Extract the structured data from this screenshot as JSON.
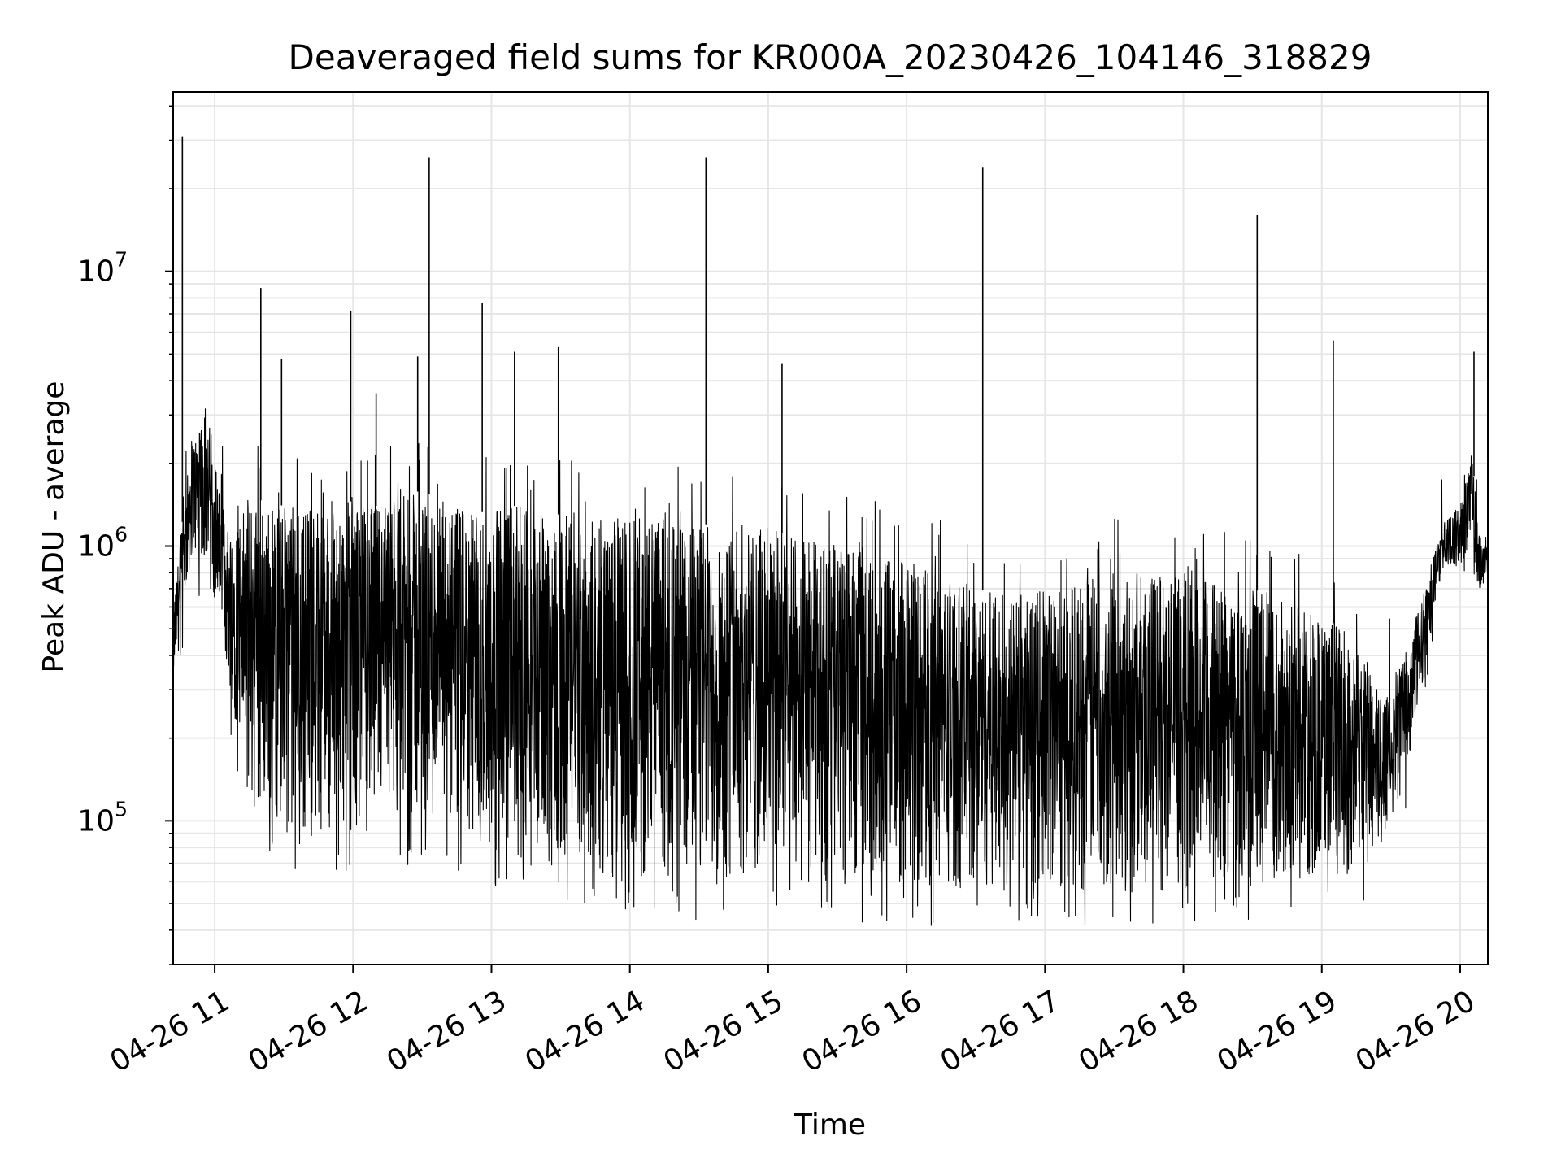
{
  "chart_data": {
    "type": "line",
    "title": "Deaveraged field sums for KR000A_20230426_104146_318829",
    "xlabel": "Time",
    "ylabel": "Peak ADU - average",
    "yscale": "log",
    "grid": true,
    "x_range": [
      "2023-04-26 10:42",
      "2023-04-26 20:12"
    ],
    "ylim": [
      30000,
      45000000
    ],
    "x_ticks": [
      {
        "t": "2023-04-26 11:00",
        "label": "04-26 11"
      },
      {
        "t": "2023-04-26 12:00",
        "label": "04-26 12"
      },
      {
        "t": "2023-04-26 13:00",
        "label": "04-26 13"
      },
      {
        "t": "2023-04-26 14:00",
        "label": "04-26 14"
      },
      {
        "t": "2023-04-26 15:00",
        "label": "04-26 15"
      },
      {
        "t": "2023-04-26 16:00",
        "label": "04-26 16"
      },
      {
        "t": "2023-04-26 17:00",
        "label": "04-26 17"
      },
      {
        "t": "2023-04-26 18:00",
        "label": "04-26 18"
      },
      {
        "t": "2023-04-26 19:00",
        "label": "04-26 19"
      },
      {
        "t": "2023-04-26 20:00",
        "label": "04-26 20"
      }
    ],
    "y_ticks": [
      {
        "value": 100000,
        "base": "10",
        "exp": "5"
      },
      {
        "value": 1000000,
        "base": "10",
        "exp": "6"
      },
      {
        "value": 10000000,
        "base": "10",
        "exp": "7"
      }
    ],
    "series": [
      {
        "color": "#000000",
        "spikes": [
          {
            "t": "2023-04-26 10:46",
            "y": 31000000
          },
          {
            "t": "2023-04-26 11:20",
            "y": 8700000
          },
          {
            "t": "2023-04-26 11:29",
            "y": 4800000
          },
          {
            "t": "2023-04-26 11:59",
            "y": 7200000
          },
          {
            "t": "2023-04-26 12:10",
            "y": 3600000
          },
          {
            "t": "2023-04-26 12:28",
            "y": 4900000
          },
          {
            "t": "2023-04-26 12:33",
            "y": 26000000
          },
          {
            "t": "2023-04-26 12:56",
            "y": 7700000
          },
          {
            "t": "2023-04-26 13:10",
            "y": 5100000
          },
          {
            "t": "2023-04-26 13:29",
            "y": 5300000
          },
          {
            "t": "2023-04-26 14:33",
            "y": 26000000
          },
          {
            "t": "2023-04-26 15:06",
            "y": 4600000
          },
          {
            "t": "2023-04-26 16:33",
            "y": 24000000
          },
          {
            "t": "2023-04-26 18:32",
            "y": 16000000
          },
          {
            "t": "2023-04-26 19:05",
            "y": 5600000
          },
          {
            "t": "2023-04-26 20:06",
            "y": 5100000
          }
        ],
        "envelope": [
          {
            "t": "2023-04-26 10:42",
            "y_low": 300000,
            "y_high": 600000
          },
          {
            "t": "2023-04-26 10:50",
            "y_low": 900000,
            "y_high": 2500000
          },
          {
            "t": "2023-04-26 10:58",
            "y_low": 800000,
            "y_high": 2800000
          },
          {
            "t": "2023-04-26 11:05",
            "y_low": 350000,
            "y_high": 1200000
          },
          {
            "t": "2023-04-26 11:15",
            "y_low": 110000,
            "y_high": 1500000
          },
          {
            "t": "2023-04-26 11:30",
            "y_low": 90000,
            "y_high": 1400000
          },
          {
            "t": "2023-04-26 11:50",
            "y_low": 85000,
            "y_high": 1500000
          },
          {
            "t": "2023-04-26 12:10",
            "y_low": 90000,
            "y_high": 1400000
          },
          {
            "t": "2023-04-26 12:30",
            "y_low": 90000,
            "y_high": 1600000
          },
          {
            "t": "2023-04-26 12:50",
            "y_low": 80000,
            "y_high": 1300000
          },
          {
            "t": "2023-04-26 13:10",
            "y_low": 70000,
            "y_high": 1400000
          },
          {
            "t": "2023-04-26 13:30",
            "y_low": 65000,
            "y_high": 1300000
          },
          {
            "t": "2023-04-26 13:50",
            "y_low": 60000,
            "y_high": 1250000
          },
          {
            "t": "2023-04-26 14:10",
            "y_low": 60000,
            "y_high": 1300000
          },
          {
            "t": "2023-04-26 14:30",
            "y_low": 58000,
            "y_high": 1200000
          },
          {
            "t": "2023-04-26 14:50",
            "y_low": 60000,
            "y_high": 1200000
          },
          {
            "t": "2023-04-26 15:10",
            "y_low": 60000,
            "y_high": 1100000
          },
          {
            "t": "2023-04-26 15:30",
            "y_low": 58000,
            "y_high": 1000000
          },
          {
            "t": "2023-04-26 15:50",
            "y_low": 56000,
            "y_high": 900000
          },
          {
            "t": "2023-04-26 16:10",
            "y_low": 55000,
            "y_high": 850000
          },
          {
            "t": "2023-04-26 16:30",
            "y_low": 56000,
            "y_high": 700000
          },
          {
            "t": "2023-04-26 16:50",
            "y_low": 55000,
            "y_high": 650000
          },
          {
            "t": "2023-04-26 17:10",
            "y_low": 55000,
            "y_high": 750000
          },
          {
            "t": "2023-04-26 17:30",
            "y_low": 55000,
            "y_high": 800000
          },
          {
            "t": "2023-04-26 17:50",
            "y_low": 55000,
            "y_high": 800000
          },
          {
            "t": "2023-04-26 18:10",
            "y_low": 56000,
            "y_high": 750000
          },
          {
            "t": "2023-04-26 18:30",
            "y_low": 58000,
            "y_high": 700000
          },
          {
            "t": "2023-04-26 18:50",
            "y_low": 60000,
            "y_high": 600000
          },
          {
            "t": "2023-04-26 19:10",
            "y_low": 62000,
            "y_high": 500000
          },
          {
            "t": "2023-04-26 19:25",
            "y_low": 70000,
            "y_high": 300000
          },
          {
            "t": "2023-04-26 19:35",
            "y_low": 120000,
            "y_high": 400000
          },
          {
            "t": "2023-04-26 19:45",
            "y_low": 350000,
            "y_high": 700000
          },
          {
            "t": "2023-04-26 19:52",
            "y_low": 800000,
            "y_high": 1200000
          },
          {
            "t": "2023-04-26 20:00",
            "y_low": 850000,
            "y_high": 1400000
          },
          {
            "t": "2023-04-26 20:05",
            "y_low": 1000000,
            "y_high": 2300000
          },
          {
            "t": "2023-04-26 20:08",
            "y_low": 650000,
            "y_high": 1100000
          },
          {
            "t": "2023-04-26 20:12",
            "y_low": 750000,
            "y_high": 1000000
          }
        ]
      }
    ]
  }
}
